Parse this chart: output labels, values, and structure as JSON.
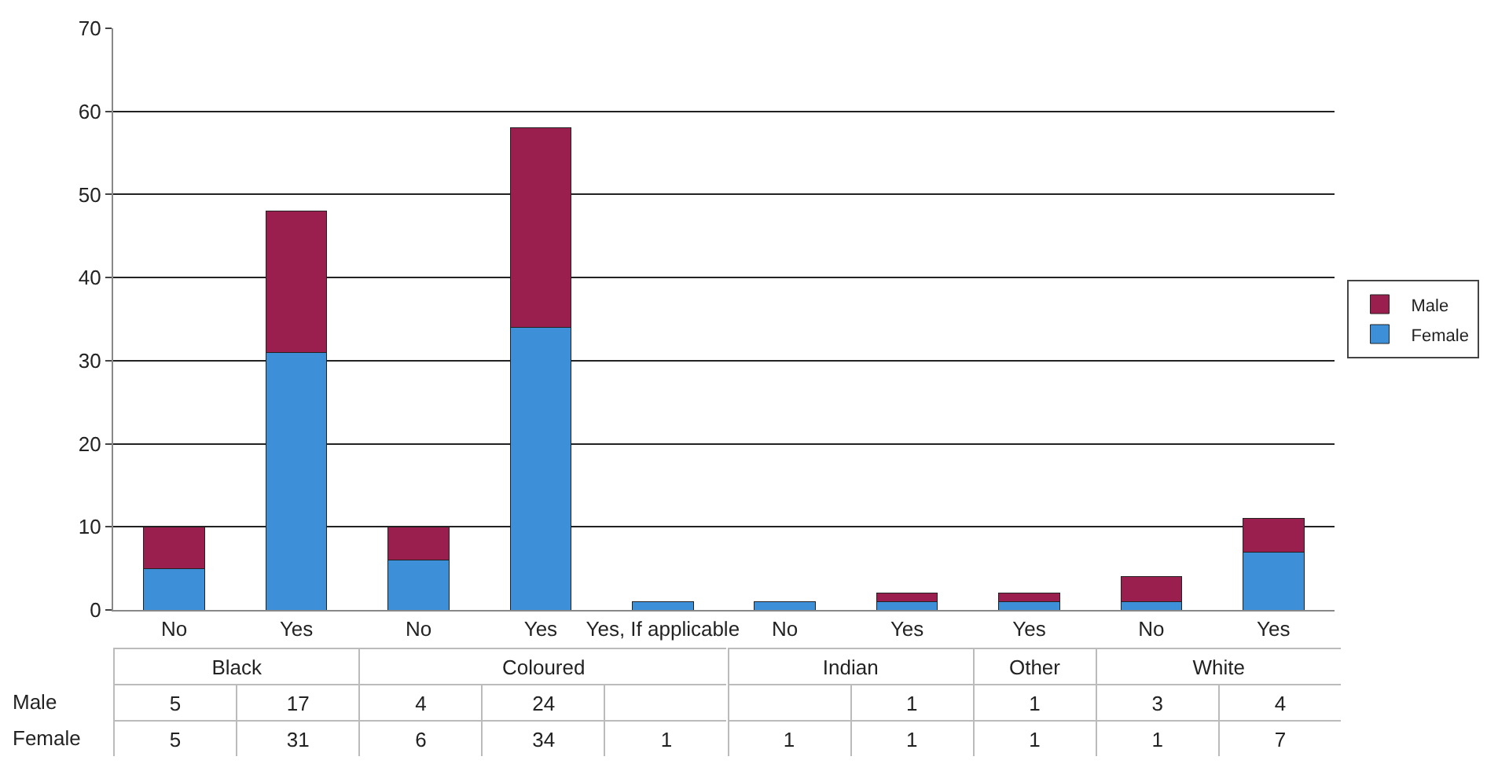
{
  "chart_data": {
    "type": "bar",
    "stacked": true,
    "categories": [
      "No",
      "Yes",
      "No",
      "Yes",
      "Yes, If applicable",
      "No",
      "Yes",
      "Yes",
      "No",
      "Yes"
    ],
    "series": [
      {
        "name": "Female",
        "color": "#3d8fd8",
        "values": [
          5,
          31,
          6,
          34,
          1,
          1,
          1,
          1,
          1,
          7
        ]
      },
      {
        "name": "Male",
        "color": "#9b1f4e",
        "values": [
          5,
          17,
          4,
          24,
          null,
          null,
          1,
          1,
          3,
          4
        ]
      }
    ],
    "annotations": [
      "Black",
      "Coloured",
      "Indian",
      "Other",
      "White"
    ],
    "ylim": [
      0,
      70
    ],
    "yticks": [
      0,
      10,
      20,
      30,
      40,
      50,
      60,
      70
    ],
    "grid": "y",
    "legend": "right",
    "data_labels": true
  }
}
